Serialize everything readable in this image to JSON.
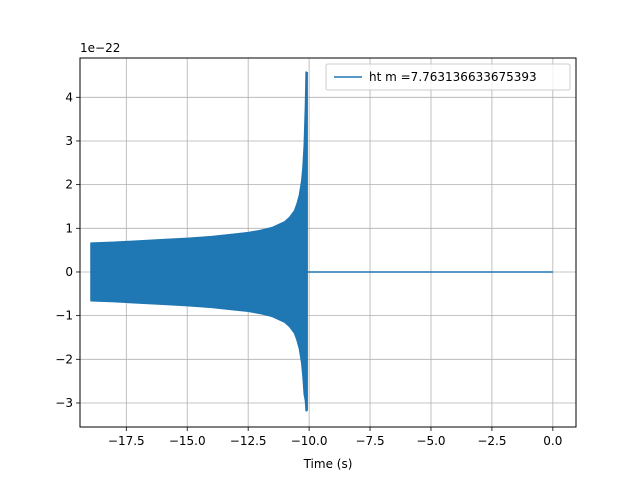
{
  "chart_data": {
    "type": "line",
    "title": "",
    "xlabel": "Time (s)",
    "ylabel": "",
    "y_offset_label": "1e−22",
    "xlim": [
      -19.4,
      0.95
    ],
    "ylim": [
      -3.55,
      4.9
    ],
    "xticks": [
      -17.5,
      -15.0,
      -12.5,
      -10.0,
      -7.5,
      -5.0,
      -2.5,
      0.0
    ],
    "xtick_labels": [
      "−17.5",
      "−15.0",
      "−12.5",
      "−10.0",
      "−7.5",
      "−5.0",
      "−2.5",
      "0.0"
    ],
    "yticks": [
      -3,
      -2,
      -1,
      0,
      1,
      2,
      3,
      4
    ],
    "ytick_labels": [
      "−3",
      "−2",
      "−1",
      "0",
      "1",
      "2",
      "3",
      "4"
    ],
    "grid": true,
    "legend_position": "top-right",
    "series": [
      {
        "name": "ht m =7.763136633675393",
        "color": "#1f77b4",
        "t_start": -18.95,
        "t_merger": -10.1,
        "t_end": 0.0,
        "envelope_time": [
          -18.95,
          -18.0,
          -17.0,
          -16.0,
          -15.0,
          -14.0,
          -13.0,
          -12.5,
          -12.0,
          -11.5,
          -11.0,
          -10.8,
          -10.6,
          -10.5,
          -10.4,
          -10.3,
          -10.25,
          -10.2,
          -10.15,
          -10.12
        ],
        "envelope_upper": [
          0.66,
          0.68,
          0.71,
          0.74,
          0.77,
          0.81,
          0.87,
          0.9,
          0.95,
          1.02,
          1.15,
          1.25,
          1.4,
          1.55,
          1.75,
          2.1,
          2.4,
          2.9,
          3.8,
          4.58
        ],
        "envelope_lower": [
          -0.66,
          -0.68,
          -0.71,
          -0.74,
          -0.77,
          -0.81,
          -0.87,
          -0.9,
          -0.95,
          -1.02,
          -1.15,
          -1.25,
          -1.4,
          -1.55,
          -1.75,
          -2.1,
          -2.4,
          -2.8,
          -2.95,
          -3.18
        ],
        "post_merger_value": 0.0
      }
    ]
  }
}
